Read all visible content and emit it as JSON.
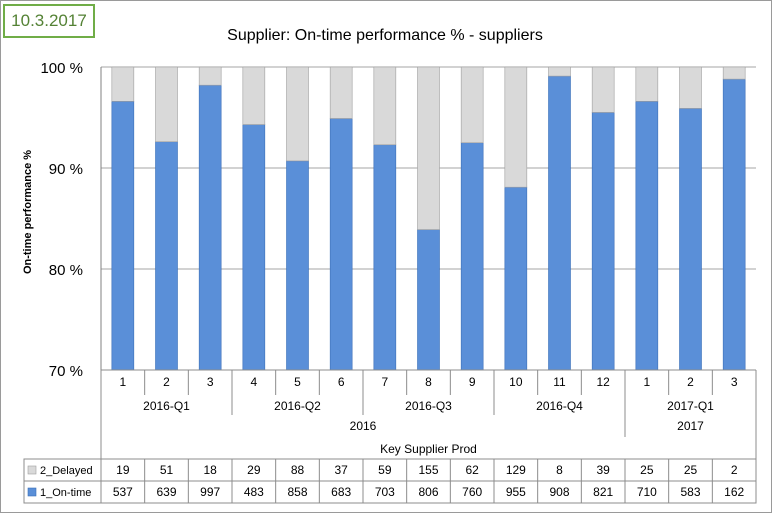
{
  "badge": {
    "date": "10.3.2017"
  },
  "chart_data": {
    "type": "bar",
    "stacked": true,
    "title": "Supplier: On-time performance % -  suppliers",
    "ylabel": "On-time performance %",
    "xlabel": "Key Supplier Prod",
    "ylim": [
      70,
      100
    ],
    "yticks": [
      70,
      80,
      90,
      100
    ],
    "ytick_labels": [
      "70 %",
      "80 %",
      "90 %",
      "100 %"
    ],
    "grid": true,
    "categories": [
      "1",
      "2",
      "3",
      "4",
      "5",
      "6",
      "7",
      "8",
      "9",
      "10",
      "11",
      "12",
      "1",
      "2",
      "3"
    ],
    "quarters": [
      {
        "label": "2016-Q1",
        "span": 3
      },
      {
        "label": "2016-Q2",
        "span": 3
      },
      {
        "label": "2016-Q3",
        "span": 3
      },
      {
        "label": "2016-Q4",
        "span": 3
      },
      {
        "label": "2017-Q1",
        "span": 3
      }
    ],
    "years": [
      {
        "label": "2016",
        "span": 12
      },
      {
        "label": "2017",
        "span": 3
      }
    ],
    "series": [
      {
        "name": "1_On-time",
        "color": "#5a8fd8",
        "counts": [
          537,
          639,
          997,
          483,
          858,
          683,
          703,
          806,
          760,
          955,
          908,
          821,
          710,
          583,
          162
        ],
        "percent": [
          96.6,
          92.6,
          98.2,
          94.3,
          90.7,
          94.9,
          92.3,
          83.9,
          92.5,
          88.1,
          99.1,
          95.5,
          96.6,
          95.9,
          98.8
        ]
      },
      {
        "name": "2_Delayed",
        "color": "#d9d9d9",
        "counts": [
          19,
          51,
          18,
          29,
          88,
          37,
          59,
          155,
          62,
          129,
          8,
          39,
          25,
          25,
          2
        ],
        "percent": [
          3.4,
          7.4,
          1.8,
          5.7,
          9.3,
          5.1,
          7.7,
          16.1,
          7.5,
          11.9,
          0.9,
          4.5,
          3.4,
          4.1,
          1.2
        ]
      }
    ],
    "table_rows": [
      {
        "series": "2_Delayed",
        "label": "2_Delayed"
      },
      {
        "series": "1_On-time",
        "label": "1_On-time"
      }
    ],
    "legend": "table-left"
  }
}
